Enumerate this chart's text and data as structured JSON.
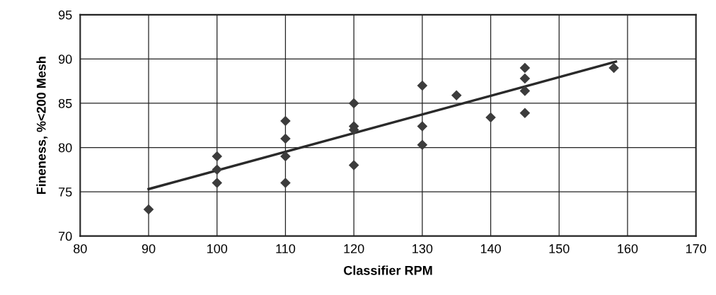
{
  "chart_data": {
    "type": "scatter",
    "xlabel": "Classifier RPM",
    "ylabel": "Fineness, %<200 Mesh",
    "xlim": [
      80,
      170
    ],
    "xticks": [
      80,
      90,
      100,
      110,
      120,
      130,
      140,
      150,
      160,
      170
    ],
    "ylim": [
      70,
      95
    ],
    "yticks": [
      70,
      75,
      80,
      85,
      90,
      95
    ],
    "grid": true,
    "legend": false,
    "series": [
      {
        "marker": "diamond",
        "color": "#3c3c3c",
        "x": [
          90,
          100,
          100,
          100,
          110,
          110,
          110,
          110,
          120,
          120,
          120,
          120,
          130,
          130,
          130,
          135,
          140,
          145,
          145,
          145,
          145,
          158
        ],
        "values": [
          73,
          79,
          77.5,
          76,
          83,
          81,
          79,
          76,
          85,
          82.4,
          82,
          78,
          87,
          82.4,
          80.3,
          85.9,
          83.4,
          89,
          87.8,
          86.4,
          83.9,
          89
        ]
      },
      {
        "type": "line",
        "marker": "none",
        "line_style": "solid",
        "color": "#2a2a2a",
        "x": [
          90,
          158.3
        ],
        "values": [
          75.3,
          89.7
        ]
      }
    ]
  }
}
